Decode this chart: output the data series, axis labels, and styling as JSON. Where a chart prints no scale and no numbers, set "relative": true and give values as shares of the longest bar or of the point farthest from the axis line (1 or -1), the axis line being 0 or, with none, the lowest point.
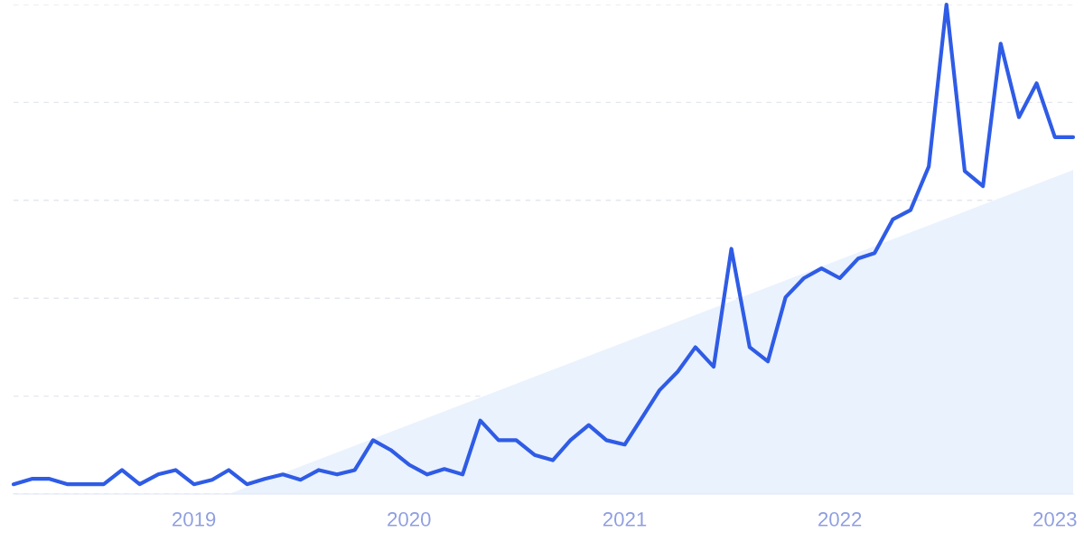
{
  "chart_data": {
    "type": "line",
    "relative": true,
    "grid": "y",
    "line_style": "solid",
    "marker": "none",
    "xlim": [
      "2018-03",
      "2023-02"
    ],
    "xticks": [
      "2019",
      "2020",
      "2021",
      "2022",
      "2023"
    ],
    "series": [
      {
        "type": "area",
        "color": "#eaf2fd",
        "x": [
          "2019-03",
          "2023-02"
        ],
        "values": [
          0,
          0.662
        ]
      },
      {
        "color": "#2f5ce6",
        "x": [
          "2018-03",
          "2018-04",
          "2018-05",
          "2018-06",
          "2018-07",
          "2018-08",
          "2018-09",
          "2018-10",
          "2018-11",
          "2018-12",
          "2019-01",
          "2019-02",
          "2019-03",
          "2019-04",
          "2019-05",
          "2019-06",
          "2019-07",
          "2019-08",
          "2019-09",
          "2019-10",
          "2019-11",
          "2019-12",
          "2020-01",
          "2020-02",
          "2020-03",
          "2020-04",
          "2020-05",
          "2020-06",
          "2020-07",
          "2020-08",
          "2020-09",
          "2020-10",
          "2020-11",
          "2020-12",
          "2021-01",
          "2021-02",
          "2021-03",
          "2021-04",
          "2021-05",
          "2021-06",
          "2021-07",
          "2021-08",
          "2021-09",
          "2021-10",
          "2021-11",
          "2021-12",
          "2022-01",
          "2022-02",
          "2022-03",
          "2022-04",
          "2022-05",
          "2022-06",
          "2022-07",
          "2022-08",
          "2022-09",
          "2022-10",
          "2022-11",
          "2022-12",
          "2023-01",
          "2023-02"
        ],
        "values": [
          0.02,
          0.031,
          0.031,
          0.02,
          0.02,
          0.02,
          0.049,
          0.02,
          0.04,
          0.049,
          0.02,
          0.029,
          0.049,
          0.02,
          0.031,
          0.04,
          0.029,
          0.049,
          0.04,
          0.049,
          0.11,
          0.09,
          0.06,
          0.04,
          0.051,
          0.04,
          0.15,
          0.11,
          0.11,
          0.08,
          0.069,
          0.11,
          0.141,
          0.11,
          0.101,
          0.159,
          0.212,
          0.25,
          0.3,
          0.26,
          0.501,
          0.3,
          0.271,
          0.402,
          0.441,
          0.461,
          0.441,
          0.481,
          0.492,
          0.561,
          0.58,
          0.669,
          1,
          0.66,
          0.629,
          0.92,
          0.77,
          0.839,
          0.729,
          0.729
        ]
      }
    ]
  }
}
